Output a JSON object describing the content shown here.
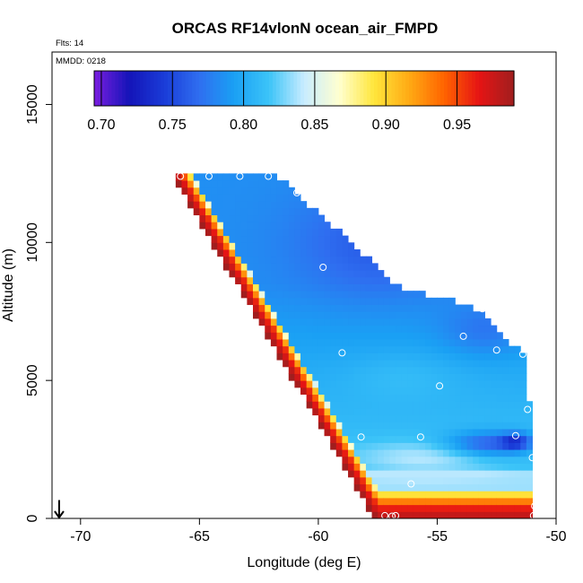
{
  "chart_data": {
    "type": "heatmap",
    "title": "ORCAS RF14vlonN ocean_air_FMPD",
    "flights_label": "Flts: 14",
    "date_label": "MMDD: 0218",
    "xlabel": "Longitude (deg E)",
    "ylabel": "Altitude (m)",
    "xlim": [
      -71.2,
      -50
    ],
    "ylim": [
      0,
      16900
    ],
    "x_ticks": [
      -70,
      -65,
      -60,
      -55,
      -50
    ],
    "x_tick_labels": [
      "-70",
      "-65",
      "-60",
      "-55",
      "-50"
    ],
    "y_ticks": [
      0,
      5000,
      10000,
      15000
    ],
    "y_tick_labels": [
      "0",
      "5000",
      "10000",
      "15000"
    ],
    "colorbar": {
      "range": [
        0.695,
        0.99
      ],
      "ticks": [
        0.7,
        0.75,
        0.8,
        0.85,
        0.9,
        0.95
      ],
      "tick_labels": [
        "0.70",
        "0.75",
        "0.80",
        "0.85",
        "0.90",
        "0.95"
      ],
      "palette": [
        "#7a1ee0",
        "#1414b8",
        "#1a3cd8",
        "#2f6ef0",
        "#1aa0f4",
        "#3cc4f8",
        "#c8ecff",
        "#ffffd0",
        "#ffe63c",
        "#ffaa14",
        "#ff6400",
        "#e61414",
        "#a01e1e"
      ]
    },
    "grid": {
      "lon_min": -66.0,
      "lon_step": 0.25,
      "n_lon": 61,
      "alt_step": 250,
      "n_alt": 50,
      "boundary": {
        "lon": [
          -66.0,
          -61.8,
          -56.5,
          -53.5,
          -52.0,
          -51.2,
          -51.1,
          -51.0,
          -51.0
        ],
        "alt": [
          12400,
          12400,
          8200,
          7600,
          6300,
          5900,
          3500,
          800,
          0
        ],
        "bottom_lon": [
          -66.0,
          -57.5
        ],
        "bottom_alt": [
          12400,
          0
        ]
      }
    },
    "flight_points": [
      {
        "lon": -65.8,
        "alt": 12400
      },
      {
        "lon": -64.6,
        "alt": 12400
      },
      {
        "lon": -63.3,
        "alt": 12400
      },
      {
        "lon": -62.1,
        "alt": 12400
      },
      {
        "lon": -60.9,
        "alt": 11800
      },
      {
        "lon": -59.8,
        "alt": 9100
      },
      {
        "lon": -53.1,
        "alt": 7600
      },
      {
        "lon": -53.9,
        "alt": 6600
      },
      {
        "lon": -52.5,
        "alt": 6100
      },
      {
        "lon": -51.4,
        "alt": 5950
      },
      {
        "lon": -59.0,
        "alt": 6000
      },
      {
        "lon": -54.9,
        "alt": 4800
      },
      {
        "lon": -51.2,
        "alt": 3950
      },
      {
        "lon": -51.7,
        "alt": 3000
      },
      {
        "lon": -55.7,
        "alt": 2950
      },
      {
        "lon": -58.2,
        "alt": 2950
      },
      {
        "lon": -51.0,
        "alt": 2200
      },
      {
        "lon": -56.1,
        "alt": 1250
      },
      {
        "lon": -57.2,
        "alt": 100
      },
      {
        "lon": -56.9,
        "alt": 80
      },
      {
        "lon": -56.75,
        "alt": 100
      },
      {
        "lon": -50.95,
        "alt": 100
      },
      {
        "lon": -50.9,
        "alt": 450
      }
    ],
    "arrow_marker": {
      "lon": -70.9,
      "alt": 600
    }
  }
}
